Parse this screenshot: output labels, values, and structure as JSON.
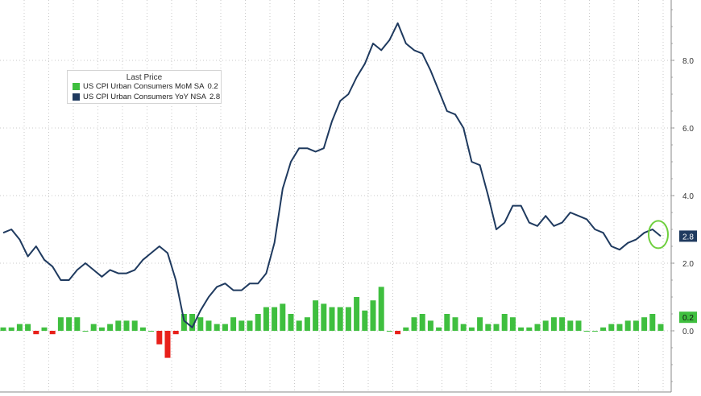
{
  "chart_data": {
    "type": "bar+line",
    "title": "",
    "legend": {
      "title": "Last Price",
      "position": "top-left"
    },
    "y_axis": {
      "side": "right",
      "ylim": [
        -1.6,
        9.7
      ],
      "ticks": [
        "0.0",
        "2.0",
        "4.0",
        "6.0",
        "8.0"
      ]
    },
    "grid": true,
    "series": [
      {
        "name": "US CPI Urban Consumers MoM SA",
        "legend_value": "0.2",
        "kind": "bar",
        "color": "#3fbf3f",
        "negative_color": "#e8201a",
        "last_label": "0.2",
        "values": [
          0.1,
          0.1,
          0.2,
          0.2,
          -0.1,
          0.1,
          -0.1,
          0.4,
          0.4,
          0.4,
          0.0,
          0.2,
          0.1,
          0.2,
          0.3,
          0.3,
          0.3,
          0.1,
          0.0,
          -0.4,
          -0.8,
          -0.1,
          0.5,
          0.5,
          0.4,
          0.3,
          0.2,
          0.2,
          0.4,
          0.3,
          0.3,
          0.5,
          0.7,
          0.7,
          0.8,
          0.5,
          0.3,
          0.4,
          0.9,
          0.8,
          0.7,
          0.7,
          0.7,
          1.0,
          0.6,
          0.9,
          1.3,
          0.0,
          -0.1,
          0.1,
          0.4,
          0.5,
          0.3,
          0.1,
          0.5,
          0.4,
          0.2,
          0.1,
          0.4,
          0.2,
          0.2,
          0.5,
          0.4,
          0.1,
          0.1,
          0.2,
          0.3,
          0.4,
          0.4,
          0.3,
          0.3,
          0.0,
          0.0,
          0.1,
          0.2,
          0.2,
          0.3,
          0.3,
          0.4,
          0.5,
          0.2
        ]
      },
      {
        "name": "US CPI Urban Consumers YoY NSA",
        "legend_value": "2.8",
        "kind": "line",
        "color": "#1f3a5f",
        "last_label": "2.8",
        "values": [
          2.9,
          3.0,
          2.7,
          2.2,
          2.5,
          2.1,
          1.9,
          1.5,
          1.5,
          1.8,
          2.0,
          1.8,
          1.6,
          1.8,
          1.7,
          1.7,
          1.8,
          2.1,
          2.3,
          2.5,
          2.3,
          1.5,
          0.3,
          0.1,
          0.6,
          1.0,
          1.3,
          1.4,
          1.2,
          1.2,
          1.4,
          1.4,
          1.7,
          2.6,
          4.2,
          5.0,
          5.4,
          5.4,
          5.3,
          5.4,
          6.2,
          6.8,
          7.0,
          7.5,
          7.9,
          8.5,
          8.3,
          8.6,
          9.1,
          8.5,
          8.3,
          8.2,
          7.7,
          7.1,
          6.5,
          6.4,
          6.0,
          5.0,
          4.9,
          4.0,
          3.0,
          3.2,
          3.7,
          3.7,
          3.2,
          3.1,
          3.4,
          3.1,
          3.2,
          3.5,
          3.4,
          3.3,
          3.0,
          2.9,
          2.5,
          2.4,
          2.6,
          2.7,
          2.9,
          3.0,
          2.8
        ]
      }
    ]
  }
}
